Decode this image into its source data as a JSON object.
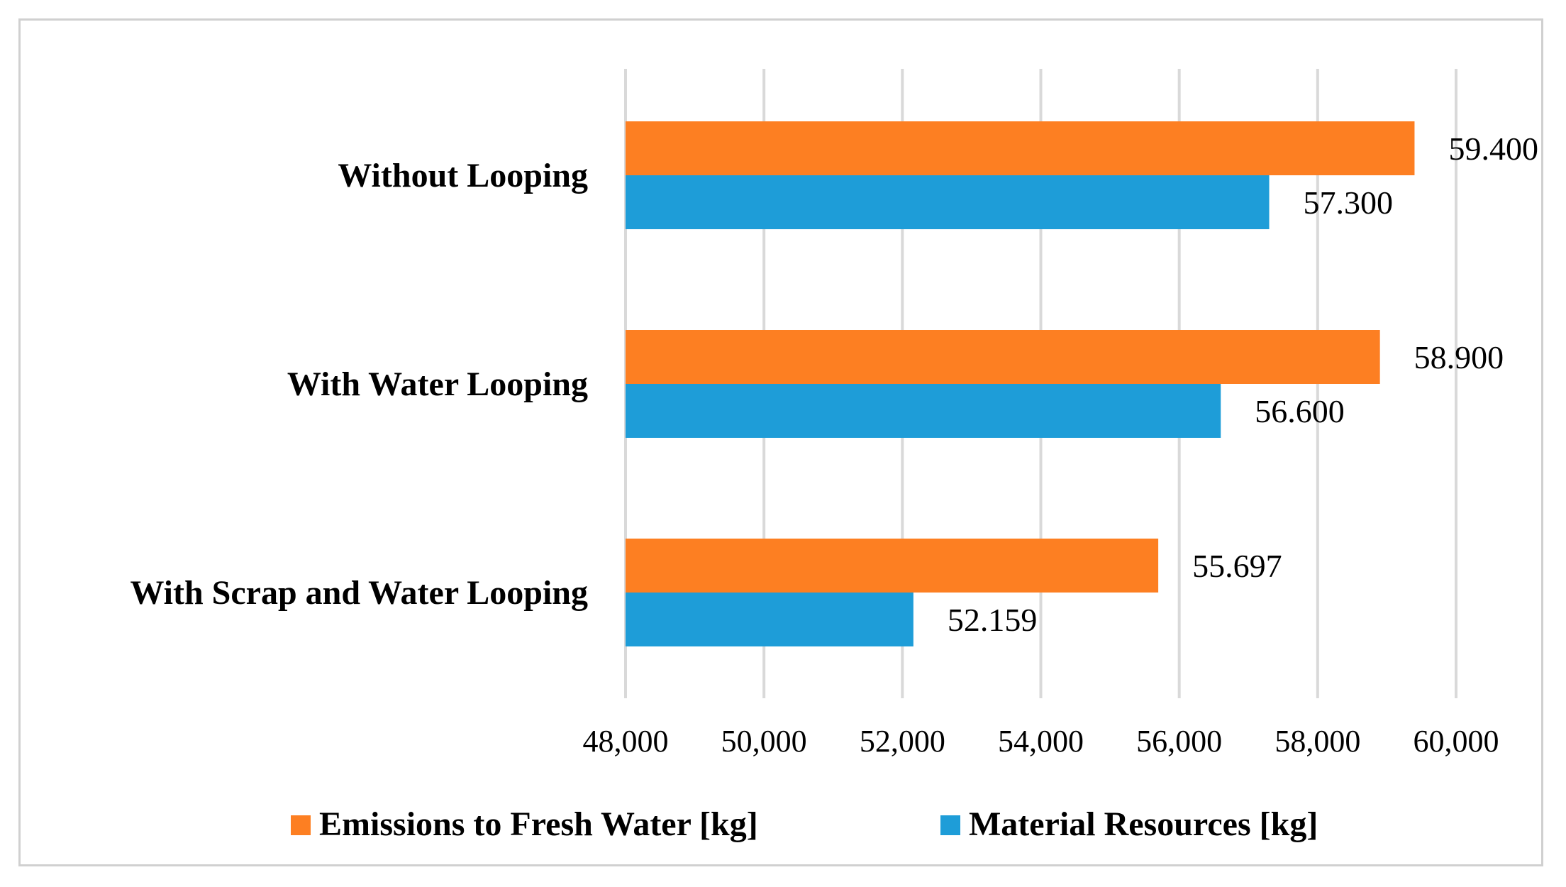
{
  "chart_data": {
    "type": "bar",
    "orientation": "horizontal",
    "title": "",
    "xlabel": "",
    "ylabel": "",
    "categories": [
      "Without Looping",
      "With Water Looping",
      "With Scrap and Water Looping"
    ],
    "series": [
      {
        "name": "Emissions to Fresh Water [kg]",
        "color": "#fd7f22",
        "values": [
          59400,
          58900,
          55697
        ],
        "labels": [
          "59.400",
          "58.900",
          "55.697"
        ]
      },
      {
        "name": "Material Resources [kg]",
        "color": "#1e9dd8",
        "values": [
          57300,
          56600,
          52159
        ],
        "labels": [
          "57.300",
          "56.600",
          "52.159"
        ]
      }
    ],
    "xlim": [
      48000,
      60000
    ],
    "xticks": [
      48000,
      50000,
      52000,
      54000,
      56000,
      58000,
      60000
    ],
    "xtick_labels": [
      "48,000",
      "50,000",
      "52,000",
      "54,000",
      "56,000",
      "58,000",
      "60,000"
    ],
    "grid": true,
    "grid_color": "#d9d9d9",
    "legend_position": "bottom"
  }
}
